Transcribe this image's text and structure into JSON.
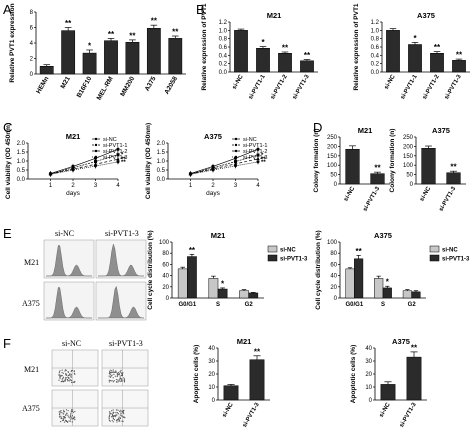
{
  "colors": {
    "dark": "#2b2b2b",
    "mid": "#8a8a8a",
    "light": "#c7c7c7",
    "white": "#ffffff",
    "ink": "#000000"
  },
  "panel_labels": [
    "A",
    "B",
    "C",
    "D",
    "E",
    "F"
  ],
  "chart_data": [
    {
      "id": "A",
      "type": "bar",
      "ylabel": "Relative PVT1 expression",
      "ylim": [
        0,
        8
      ],
      "yticks": [
        0,
        2,
        4,
        6,
        8
      ],
      "categories": [
        "HEMn",
        "M21",
        "B16F10",
        "MEL-RM",
        "MM200",
        "A375",
        "A2058"
      ],
      "values": [
        1.0,
        5.6,
        2.7,
        4.3,
        4.1,
        5.9,
        4.6
      ],
      "errors": [
        0.2,
        0.4,
        0.4,
        0.3,
        0.3,
        0.4,
        0.3
      ],
      "sig": [
        "",
        "**",
        "*",
        "**",
        "**",
        "**",
        "**"
      ]
    },
    {
      "id": "B1",
      "type": "bar",
      "title": "M21",
      "ylabel": "Relative expression of PVT1",
      "ylim": [
        0,
        1.2
      ],
      "yticks": [
        0.0,
        0.2,
        0.4,
        0.6,
        0.8,
        1.0,
        1.2
      ],
      "categories": [
        "si-NC",
        "si-PVT1-1",
        "si-PVT1-2",
        "si-PVT1-3"
      ],
      "values": [
        1.0,
        0.57,
        0.45,
        0.27
      ],
      "errors": [
        0.03,
        0.04,
        0.03,
        0.03
      ],
      "sig": [
        "",
        "*",
        "**",
        "**"
      ]
    },
    {
      "id": "B2",
      "type": "bar",
      "title": "A375",
      "ylabel": "Relative expression of PVT1",
      "ylim": [
        0,
        1.2
      ],
      "yticks": [
        0.0,
        0.2,
        0.4,
        0.6,
        0.8,
        1.0,
        1.2
      ],
      "categories": [
        "si-NC",
        "si-PVT1-1",
        "si-PVT1-2",
        "si-PVT1-3"
      ],
      "values": [
        1.0,
        0.66,
        0.45,
        0.28
      ],
      "errors": [
        0.04,
        0.05,
        0.04,
        0.03
      ],
      "sig": [
        "",
        "*",
        "**",
        "**"
      ]
    },
    {
      "id": "C1",
      "type": "line",
      "title": "M21",
      "ylabel": "Cell viability (OD 450nm)",
      "xlabel": "days",
      "ylim": [
        0,
        2.0
      ],
      "yticks": [
        0.0,
        0.5,
        1.0,
        1.5,
        2.0
      ],
      "xlim": [
        0,
        4
      ],
      "xticks": [
        1,
        2,
        3,
        4
      ],
      "x": [
        1,
        2,
        3,
        4
      ],
      "series": [
        {
          "name": "si-NC",
          "values": [
            0.3,
            0.7,
            1.15,
            1.65
          ],
          "marker": "circle"
        },
        {
          "name": "si-PVT1-1",
          "values": [
            0.28,
            0.62,
            0.97,
            1.35
          ],
          "marker": "square"
        },
        {
          "name": "si-PVT1-2",
          "values": [
            0.27,
            0.55,
            0.82,
            1.1
          ],
          "marker": "triangle"
        },
        {
          "name": "si-PVT1-3",
          "values": [
            0.26,
            0.5,
            0.72,
            0.95
          ],
          "marker": "diamond"
        }
      ],
      "end_sig": [
        "*",
        "**",
        "**"
      ]
    },
    {
      "id": "C2",
      "type": "line",
      "title": "A375",
      "ylabel": "Cell viability (OD 450nm)",
      "xlabel": "days",
      "ylim": [
        0,
        2.0
      ],
      "yticks": [
        0.0,
        0.5,
        1.0,
        1.5,
        2.0
      ],
      "xlim": [
        0,
        4
      ],
      "xticks": [
        1,
        2,
        3,
        4
      ],
      "x": [
        1,
        2,
        3,
        4
      ],
      "series": [
        {
          "name": "si-NC",
          "values": [
            0.3,
            0.7,
            1.15,
            1.65
          ],
          "marker": "circle"
        },
        {
          "name": "si-PVT1-1",
          "values": [
            0.28,
            0.62,
            0.97,
            1.33
          ],
          "marker": "square"
        },
        {
          "name": "si-PVT1-2",
          "values": [
            0.27,
            0.56,
            0.84,
            1.12
          ],
          "marker": "triangle"
        },
        {
          "name": "si-PVT1-3",
          "values": [
            0.26,
            0.5,
            0.73,
            0.95
          ],
          "marker": "diamond"
        }
      ],
      "end_sig": [
        "*",
        "**",
        "**"
      ]
    },
    {
      "id": "D1",
      "type": "bar",
      "title": "M21",
      "ylabel": "Colony formation (n)",
      "ylim": [
        0,
        250
      ],
      "yticks": [
        0,
        50,
        100,
        150,
        200,
        250
      ],
      "categories": [
        "si-NC",
        "si-PVT1-3"
      ],
      "values": [
        185,
        55
      ],
      "errors": [
        18,
        8
      ],
      "sig": [
        "",
        "**"
      ]
    },
    {
      "id": "D2",
      "type": "bar",
      "title": "A375",
      "ylabel": "Colony formation (n)",
      "ylim": [
        0,
        250
      ],
      "yticks": [
        0,
        50,
        100,
        150,
        200,
        250
      ],
      "categories": [
        "si-NC",
        "si-PVT1-3"
      ],
      "values": [
        190,
        60
      ],
      "errors": [
        12,
        8
      ],
      "sig": [
        "",
        "**"
      ]
    },
    {
      "id": "E1",
      "type": "bar",
      "title": "M21",
      "ylabel": "Cell cycle distribution (%)",
      "ylim": [
        0,
        100
      ],
      "yticks": [
        0,
        20,
        40,
        60,
        80,
        100
      ],
      "categories": [
        "G0/G1",
        "S",
        "G2"
      ],
      "series": [
        {
          "name": "si-NC",
          "values": [
            52,
            35,
            13
          ],
          "errors": [
            3,
            4,
            2
          ]
        },
        {
          "name": "si-PVT1-3",
          "values": [
            74,
            16,
            9
          ],
          "errors": [
            4,
            2,
            1
          ]
        }
      ],
      "sig": [
        "**",
        "*",
        ""
      ]
    },
    {
      "id": "E2",
      "type": "bar",
      "title": "A375",
      "ylabel": "Cell cycle distribution (%)",
      "ylim": [
        0,
        100
      ],
      "yticks": [
        0,
        20,
        40,
        60,
        80,
        100
      ],
      "categories": [
        "G0/G1",
        "S",
        "G2"
      ],
      "series": [
        {
          "name": "si-NC",
          "values": [
            52,
            35,
            13
          ],
          "errors": [
            2,
            4,
            2
          ]
        },
        {
          "name": "si-PVT1-3",
          "values": [
            70,
            18,
            11
          ],
          "errors": [
            6,
            3,
            2
          ]
        }
      ],
      "sig": [
        "**",
        "*",
        ""
      ]
    },
    {
      "id": "F1",
      "type": "bar",
      "title": "M21",
      "ylabel": "Apoptotic cells (%)",
      "ylim": [
        0,
        40
      ],
      "yticks": [
        0,
        10,
        20,
        30,
        40
      ],
      "categories": [
        "si-NC",
        "si-PVT1-3"
      ],
      "values": [
        11,
        31
      ],
      "errors": [
        1,
        3
      ],
      "sig": [
        "",
        "**"
      ]
    },
    {
      "id": "F2",
      "type": "bar",
      "title": "A375",
      "ylabel": "Apoptotic cells (%)",
      "ylim": [
        0,
        40
      ],
      "yticks": [
        0,
        10,
        20,
        30,
        40
      ],
      "categories": [
        "si-NC",
        "si-PVT1-3"
      ],
      "values": [
        12,
        33
      ],
      "errors": [
        2,
        4
      ],
      "sig": [
        "",
        "**"
      ]
    }
  ],
  "flow_images": {
    "E": {
      "col_labels": [
        "si-NC",
        "si-PVT1-3"
      ],
      "row_labels": [
        "M21",
        "A375"
      ]
    },
    "F": {
      "col_labels": [
        "si-NC",
        "si-PVT1-3"
      ],
      "row_labels": [
        "M21",
        "A375"
      ]
    }
  }
}
